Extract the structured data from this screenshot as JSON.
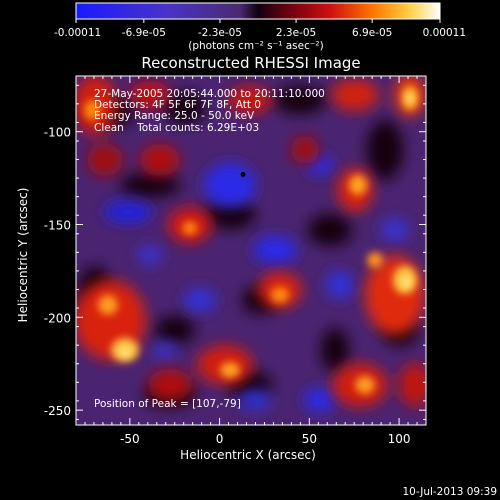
{
  "chart_data": {
    "type": "heatmap",
    "title": "Reconstructed RHESSI Image",
    "xlabel": "Heliocentric X (arcsec)",
    "ylabel": "Heliocentric Y (arcsec)",
    "xlim": [
      -80,
      115
    ],
    "ylim": [
      -258,
      -70
    ],
    "x_ticks": [
      "-50",
      "0",
      "50",
      "100"
    ],
    "y_ticks": [
      "-100",
      "-150",
      "-200",
      "-250"
    ],
    "x_tick_values": [
      -50,
      0,
      50,
      100
    ],
    "y_tick_values": [
      -100,
      -150,
      -200,
      -250
    ],
    "colorbar": {
      "ticks": [
        "-0.00011",
        "-6.9e-05",
        "-2.3e-05",
        "2.3e-05",
        "6.9e-05",
        "0.00011"
      ],
      "tick_values": [
        -0.00011,
        -6.9e-05,
        -2.3e-05,
        2.3e-05,
        6.9e-05,
        0.00011
      ],
      "range": [
        -0.00011,
        0.00011
      ],
      "units_text": "(photons cm⁻² s⁻¹ asec⁻²)"
    },
    "annotations": [
      "27-May-2005 20:05:44.000 to 20:11:10.000",
      "Detectors: 4F 5F 6F 7F 8F, Att 0",
      "Energy Range: 25.0 - 50.0 keV",
      "Clean    Total counts: 6.29E+03"
    ],
    "peak_label": "Position of Peak = [107,-79]",
    "marker": {
      "x": 13,
      "y": -123
    },
    "timestamp": "10-Jul-2013 09:39"
  }
}
